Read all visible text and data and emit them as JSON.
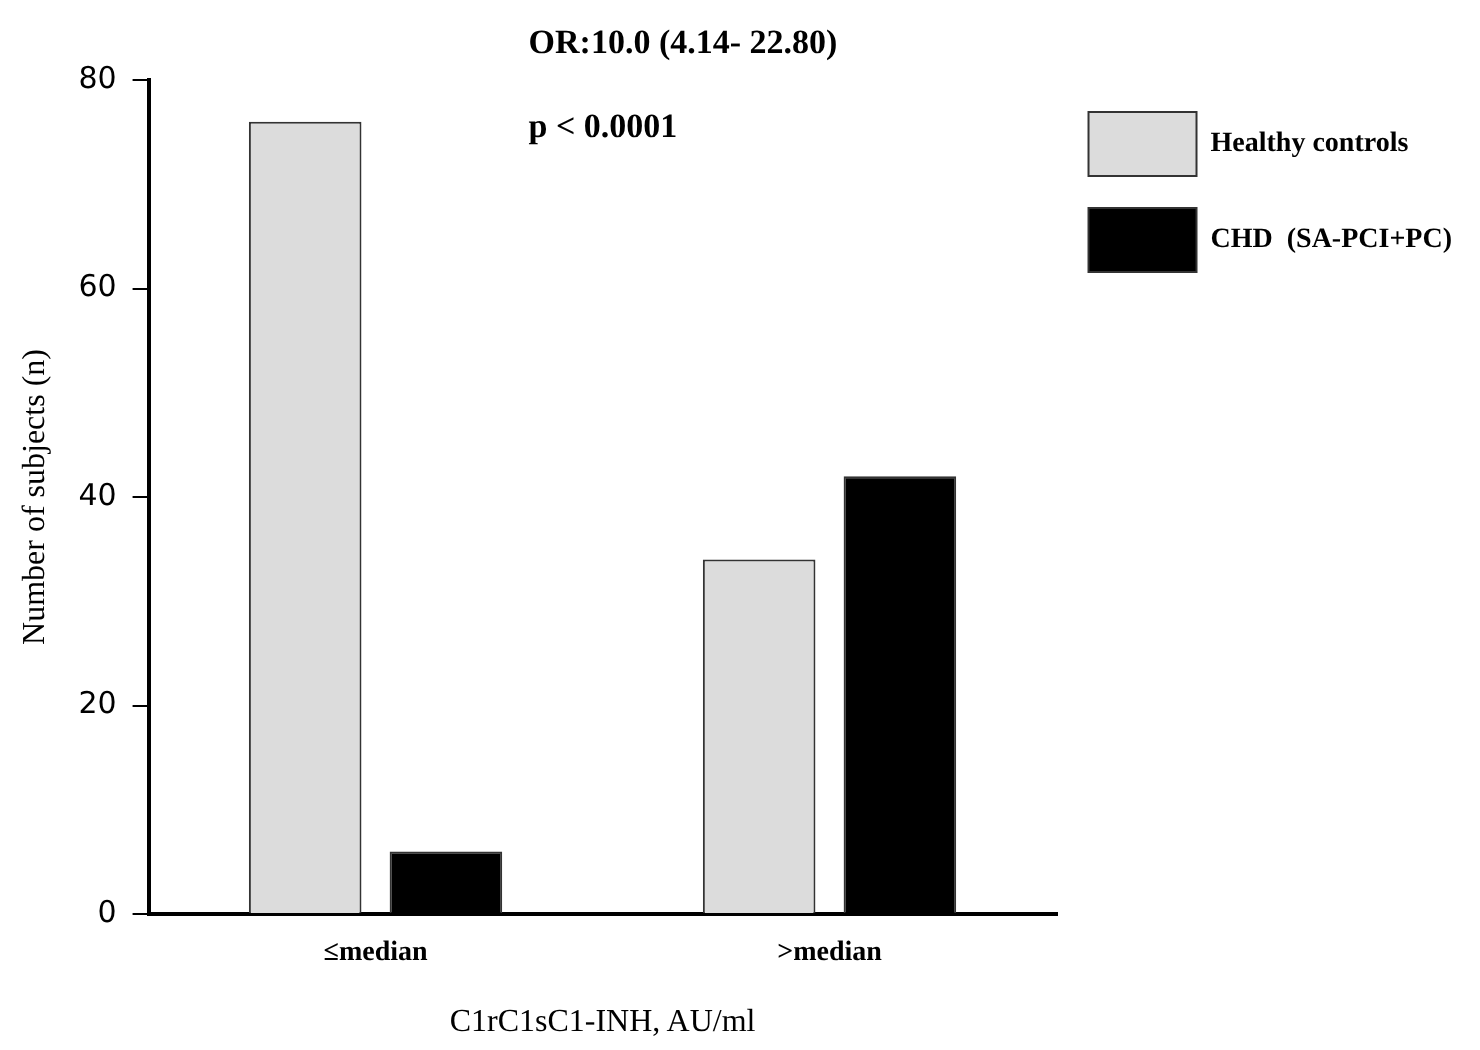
{
  "chart_data": {
    "type": "bar",
    "xlabel": "C1rC1sC1-INH, AU/ml",
    "ylabel": "Number of subjects (n)",
    "categories": [
      "≤median",
      ">median"
    ],
    "series": [
      {
        "name": "Healthy controls",
        "color": "#dcdcdc",
        "values": [
          76,
          34
        ]
      },
      {
        "name": "CHD  (SA-PCI+PC)",
        "color": "#000000",
        "values": [
          6,
          42
        ]
      }
    ],
    "ylim": [
      0,
      80
    ],
    "yticks": [
      0,
      20,
      40,
      60,
      80
    ],
    "grid": false,
    "legend": "top right",
    "annotations": [
      "OR:10.0 (4.14- 22.80)",
      "p < 0.0001"
    ]
  }
}
